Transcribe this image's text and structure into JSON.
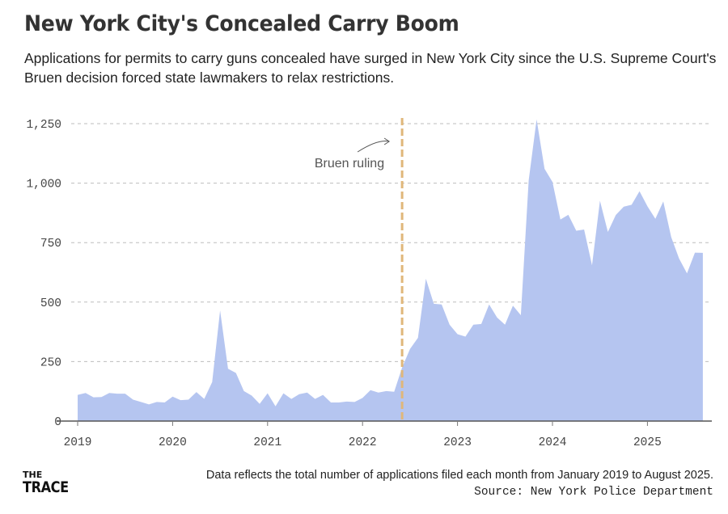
{
  "title": "New York City's Concealed Carry Boom",
  "subtitle": "Applications for permits to carry guns concealed have surged in New York City since the U.S. Supreme Court's Bruen decision forced state lawmakers to relax restrictions.",
  "footer": {
    "logo_line1": "THE",
    "logo_line2": "TRACE",
    "note": "Data reflects the total number of applications filed each month from January 2019 to August 2025.",
    "source": "Source: New York Police Department"
  },
  "chart_data": {
    "type": "area",
    "title": "New York City's Concealed Carry Boom",
    "xlabel": "",
    "ylabel": "",
    "x_start": "2019-01",
    "x_end": "2025-08",
    "x_ticks": [
      "2019",
      "2020",
      "2021",
      "2022",
      "2023",
      "2024",
      "2025"
    ],
    "y_ticks": [
      0,
      250,
      500,
      750,
      1000,
      1250
    ],
    "y_tick_labels": [
      "0",
      "250",
      "500",
      "750",
      "1,000",
      "1,250"
    ],
    "ylim": [
      0,
      1250
    ],
    "grid": "horizontal dashed",
    "area_color": "#b5c5f0",
    "values": [
      110,
      118,
      100,
      101,
      118,
      115,
      115,
      90,
      80,
      70,
      80,
      78,
      103,
      88,
      90,
      122,
      93,
      164,
      465,
      220,
      202,
      126,
      107,
      72,
      117,
      62,
      117,
      93,
      113,
      120,
      93,
      110,
      78,
      78,
      82,
      80,
      97,
      130,
      120,
      126,
      123,
      225,
      303,
      350,
      598,
      493,
      490,
      405,
      365,
      355,
      405,
      408,
      490,
      435,
      405,
      485,
      445,
      1012,
      1268,
      1060,
      1005,
      847,
      867,
      800,
      805,
      655,
      926,
      795,
      866,
      901,
      909,
      966,
      903,
      850,
      923,
      773,
      683,
      621,
      708,
      707
    ],
    "annotation": {
      "label": "Bruen ruling",
      "date": "2022-06",
      "color": "#e0b77a"
    }
  }
}
